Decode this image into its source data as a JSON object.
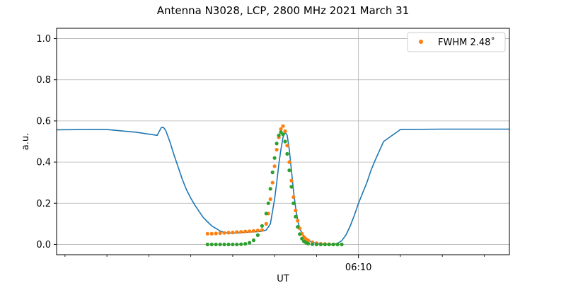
{
  "chart_data": {
    "type": "line",
    "title": "Antenna N3028, LCP, 2800 MHz 2021 March 31",
    "xlabel": "UT",
    "ylabel": "a.u.",
    "x_unit": "minutes relative to 06:10 UT",
    "xlim": [
      -7.2,
      3.6
    ],
    "ylim": [
      -0.05,
      1.05
    ],
    "yticks": [
      "0.0",
      "0.2",
      "0.4",
      "0.6",
      "0.8",
      "1.0"
    ],
    "xtick_label": "06:10",
    "grid": true,
    "legend_position": "top-right",
    "legend": {
      "label": "FWHM 2.48$^\\circ$",
      "display": "FWHM 2.48˚"
    },
    "colors": {
      "data": "#1f77b4",
      "fit": "#ff7f0e",
      "model": "#2ca02c",
      "grid": "#b0b0b0"
    },
    "series": [
      {
        "style": "line",
        "color": "#1f77b4",
        "x": [
          -7.2,
          -6.5,
          -6.0,
          -5.3,
          -4.8,
          -4.75,
          -4.7,
          -4.65,
          -4.6,
          -4.5,
          -4.4,
          -4.3,
          -4.2,
          -4.1,
          -4.0,
          -3.9,
          -3.8,
          -3.7,
          -3.6,
          -3.5,
          -3.4,
          -3.3,
          -3.2,
          -3.1,
          -3.0,
          -2.8,
          -2.6,
          -2.4,
          -2.3,
          -2.2,
          -2.1,
          -2.0,
          -1.95,
          -1.9,
          -1.85,
          -1.8,
          -1.75,
          -1.7,
          -1.65,
          -1.6,
          -1.55,
          -1.5,
          -1.45,
          -1.4,
          -1.3,
          -1.2,
          -1.1,
          -1.0,
          -0.9,
          -0.8,
          -0.7,
          -0.6,
          -0.5,
          -0.4,
          -0.3,
          -0.2,
          -0.1,
          0.0,
          0.1,
          0.2,
          0.3,
          0.4,
          0.6,
          1.0,
          2.0,
          3.6
        ],
        "y": [
          0.557,
          0.558,
          0.558,
          0.545,
          0.53,
          0.55,
          0.568,
          0.568,
          0.555,
          0.5,
          0.435,
          0.375,
          0.315,
          0.265,
          0.225,
          0.19,
          0.16,
          0.13,
          0.11,
          0.09,
          0.078,
          0.065,
          0.058,
          0.055,
          0.055,
          0.057,
          0.06,
          0.062,
          0.064,
          0.07,
          0.1,
          0.22,
          0.3,
          0.39,
          0.46,
          0.52,
          0.545,
          0.53,
          0.46,
          0.36,
          0.26,
          0.18,
          0.12,
          0.075,
          0.04,
          0.02,
          0.01,
          0.005,
          0.002,
          0.0,
          0.0,
          0.0,
          0.005,
          0.018,
          0.045,
          0.088,
          0.14,
          0.2,
          0.25,
          0.3,
          0.36,
          0.41,
          0.5,
          0.558,
          0.56,
          0.56
        ]
      },
      {
        "style": "points",
        "color": "#ff7f0e",
        "x": [
          -3.6,
          -3.5,
          -3.4,
          -3.3,
          -3.2,
          -3.1,
          -3.0,
          -2.9,
          -2.8,
          -2.7,
          -2.6,
          -2.5,
          -2.4,
          -2.3,
          -2.2,
          -2.15,
          -2.1,
          -2.05,
          -2.0,
          -1.95,
          -1.9,
          -1.85,
          -1.8,
          -1.75,
          -1.7,
          -1.65,
          -1.6,
          -1.55,
          -1.5,
          -1.45,
          -1.4,
          -1.35,
          -1.3,
          -1.25,
          -1.2,
          -1.1,
          -1.0,
          -0.9,
          -0.8,
          -0.7,
          -0.6,
          -0.5,
          -0.4
        ],
        "y": [
          0.052,
          0.052,
          0.053,
          0.055,
          0.056,
          0.057,
          0.058,
          0.06,
          0.061,
          0.063,
          0.064,
          0.066,
          0.068,
          0.07,
          0.1,
          0.15,
          0.22,
          0.3,
          0.38,
          0.46,
          0.52,
          0.56,
          0.575,
          0.55,
          0.48,
          0.4,
          0.31,
          0.23,
          0.165,
          0.115,
          0.078,
          0.052,
          0.036,
          0.026,
          0.019,
          0.011,
          0.006,
          0.003,
          0.002,
          0.001,
          0.0,
          0.0,
          0.0
        ]
      },
      {
        "style": "points",
        "color": "#2ca02c",
        "x": [
          -3.6,
          -3.5,
          -3.4,
          -3.3,
          -3.2,
          -3.1,
          -3.0,
          -2.9,
          -2.8,
          -2.7,
          -2.6,
          -2.5,
          -2.4,
          -2.3,
          -2.2,
          -2.15,
          -2.1,
          -2.05,
          -2.0,
          -1.95,
          -1.9,
          -1.85,
          -1.8,
          -1.75,
          -1.7,
          -1.65,
          -1.6,
          -1.55,
          -1.5,
          -1.45,
          -1.4,
          -1.35,
          -1.3,
          -1.25,
          -1.2,
          -1.1,
          -1.0,
          -0.9,
          -0.8,
          -0.7,
          -0.6,
          -0.5,
          -0.4
        ],
        "y": [
          0.0,
          0.0,
          0.0,
          0.0,
          0.0,
          0.0,
          0.0,
          0.0,
          0.001,
          0.003,
          0.008,
          0.02,
          0.045,
          0.09,
          0.15,
          0.2,
          0.27,
          0.35,
          0.42,
          0.49,
          0.53,
          0.545,
          0.535,
          0.5,
          0.44,
          0.36,
          0.28,
          0.2,
          0.135,
          0.085,
          0.05,
          0.028,
          0.015,
          0.008,
          0.004,
          0.001,
          0.0,
          0.0,
          0.0,
          0.0,
          0.0,
          0.0,
          0.0
        ]
      }
    ]
  }
}
